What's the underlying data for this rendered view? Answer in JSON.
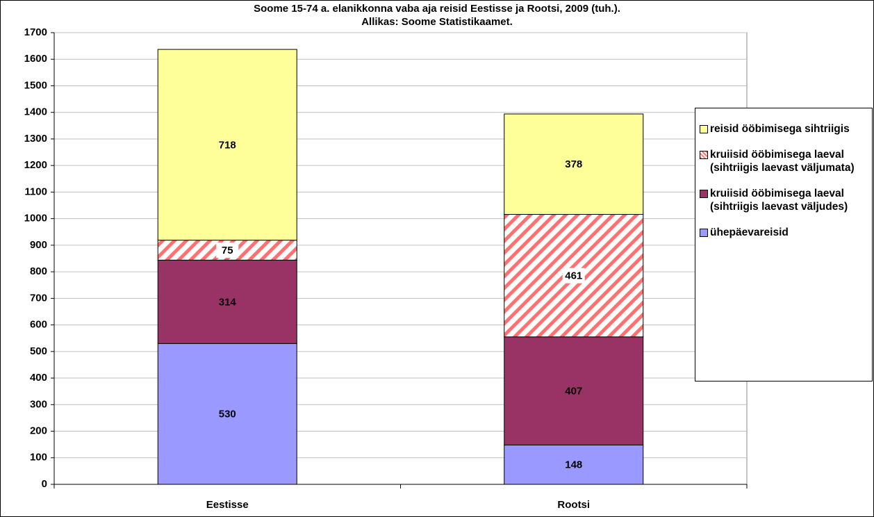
{
  "chart_data": {
    "type": "stacked_bar",
    "title": "Soome 15-74 a. elanikkonna vaba aja reisid Eestisse ja Rootsi, 2009 (tuh.).",
    "subtitle": "Allikas: Soome Statistikaamet.",
    "categories": [
      "Eestisse",
      "Rootsi"
    ],
    "series": [
      {
        "name": "ühepäevareisid",
        "color": "#9999ff",
        "values": [
          530,
          148
        ]
      },
      {
        "name": "kruiisid ööbimisega laeval (sihtriigis laevast väljudes)",
        "color": "#993366",
        "values": [
          314,
          407
        ]
      },
      {
        "name": "kruiisid ööbimisega laeval (sihtriigis laevast väljumata)",
        "color": "#ff7070",
        "pattern": "hatch",
        "values": [
          75,
          461
        ]
      },
      {
        "name": "reisid ööbimisega sihtriigis",
        "color": "#ffff99",
        "values": [
          718,
          378
        ]
      }
    ],
    "ylim": [
      0,
      1700
    ],
    "yticks": [
      0,
      100,
      200,
      300,
      400,
      500,
      600,
      700,
      800,
      900,
      1000,
      1100,
      1200,
      1300,
      1400,
      1500,
      1600,
      1700
    ],
    "grid": true,
    "legend": "right"
  }
}
